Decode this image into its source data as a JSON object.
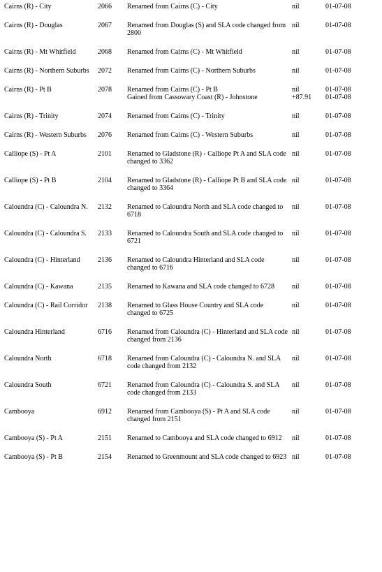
{
  "rows": [
    {
      "name": "Cairns (R) - City",
      "code": "2066",
      "lines": [
        {
          "comment": "Renamed from Cairns (C) - City",
          "area": "nil",
          "date": "01-07-08"
        }
      ]
    },
    {
      "name": "Cairns (R) - Douglas",
      "code": "2067",
      "lines": [
        {
          "comment": "Renamed from Douglas (S) and SLA code changed from 2800",
          "area": "nil",
          "date": "01-07-08"
        }
      ]
    },
    {
      "name": "Cairns (R) - Mt Whitfield",
      "code": "2068",
      "lines": [
        {
          "comment": "Renamed from Cairns (C) - Mt Whitfield",
          "area": "nil",
          "date": "01-07-08"
        }
      ]
    },
    {
      "name": "Cairns (R) - Northern Suburbs",
      "code": "2072",
      "lines": [
        {
          "comment": "Renamed from Cairns (C) - Northern Suburbs",
          "area": "nil",
          "date": "01-07-08"
        }
      ]
    },
    {
      "name": "Cairns (R) - Pt B",
      "code": "2078",
      "lines": [
        {
          "comment": "Renamed from Cairns (C) - Pt B",
          "area": "nil",
          "date": "01-07-08"
        },
        {
          "comment": "Gained from Cassowary Coast (R) - Johnstone",
          "area": "+87.91",
          "date": "01-07-08"
        }
      ]
    },
    {
      "name": "Cairns (R) - Trinity",
      "code": "2074",
      "lines": [
        {
          "comment": "Renamed from Cairns (C) - Trinity",
          "area": "nil",
          "date": "01-07-08"
        }
      ]
    },
    {
      "name": "Cairns (R) - Western Suburbs",
      "code": "2076",
      "lines": [
        {
          "comment": "Renamed from Cairns (C) - Western Suburbs",
          "area": "nil",
          "date": "01-07-08"
        }
      ]
    },
    {
      "name": "Calliope (S) - Pt A",
      "code": "2101",
      "lines": [
        {
          "comment": "Renamed to Gladstone (R) - Calliope Pt A and SLA code changed to 3362",
          "area": "nil",
          "date": "01-07-08"
        }
      ]
    },
    {
      "name": "Calliope (S) - Pt B",
      "code": "2104",
      "lines": [
        {
          "comment": "Renamed to Gladstone (R) - Calliope Pt B and SLA code changed to 3364",
          "area": "nil",
          "date": "01-07-08"
        }
      ]
    },
    {
      "name": "Caloundra (C) - Caloundra N.",
      "code": "2132",
      "lines": [
        {
          "comment": "Renamed to Caloundra North and SLA code changed to 6718",
          "area": "nil",
          "date": "01-07-08"
        }
      ]
    },
    {
      "name": "Caloundra (C) - Caloundra S.",
      "code": "2133",
      "lines": [
        {
          "comment": "Renamed to Caloundra South and SLA code changed to 6721",
          "area": "nil",
          "date": "01-07-08"
        }
      ]
    },
    {
      "name": "Caloundra (C) - Hinterland",
      "code": "2136",
      "lines": [
        {
          "comment": "Renamed to Caloundra Hinterland and SLA code changed to 6716",
          "area": "nil",
          "date": "01-07-08"
        }
      ]
    },
    {
      "name": "Caloundra (C) - Kawana",
      "code": "2135",
      "lines": [
        {
          "comment": "Renamed to Kawana and SLA code changed to 6728",
          "area": "nil",
          "date": "01-07-08"
        }
      ]
    },
    {
      "name": "Caloundra (C) - Rail Corridor",
      "code": "2138",
      "lines": [
        {
          "comment": "Renamed to Glass House Country and SLA code changed to 6725",
          "area": "nil",
          "date": "01-07-08"
        }
      ]
    },
    {
      "name": "Caloundra Hinterland",
      "code": "6716",
      "lines": [
        {
          "comment": "Renamed from Caloundra (C) - Hinterland and SLA code changed from 2136",
          "area": "nil",
          "date": "01-07-08"
        }
      ]
    },
    {
      "name": "Caloundra North",
      "code": "6718",
      "lines": [
        {
          "comment": "Renamed from Caloundra (C) - Caloundra N. and SLA code changed from 2132",
          "area": "nil",
          "date": "01-07-08"
        }
      ]
    },
    {
      "name": "Caloundra South",
      "code": "6721",
      "lines": [
        {
          "comment": "Renamed from Caloundra (C) - Caloundra S. and SLA code changed from 2133",
          "area": "nil",
          "date": "01-07-08"
        }
      ]
    },
    {
      "name": "Cambooya",
      "code": "6912",
      "lines": [
        {
          "comment": "Renamed from Cambooya (S) - Pt A and SLA code changed from 2151",
          "area": "nil",
          "date": "01-07-08"
        }
      ]
    },
    {
      "name": "Cambooya (S) - Pt A",
      "code": "2151",
      "lines": [
        {
          "comment": "Renamed to Cambooya and SLA code changed to 6912",
          "area": "nil",
          "date": "01-07-08"
        }
      ]
    },
    {
      "name": "Cambooya (S) - Pt B",
      "code": "2154",
      "lines": [
        {
          "comment": "Renamed to Greenmount and SLA code changed to 6923",
          "area": "nil",
          "date": "01-07-08"
        }
      ]
    }
  ]
}
